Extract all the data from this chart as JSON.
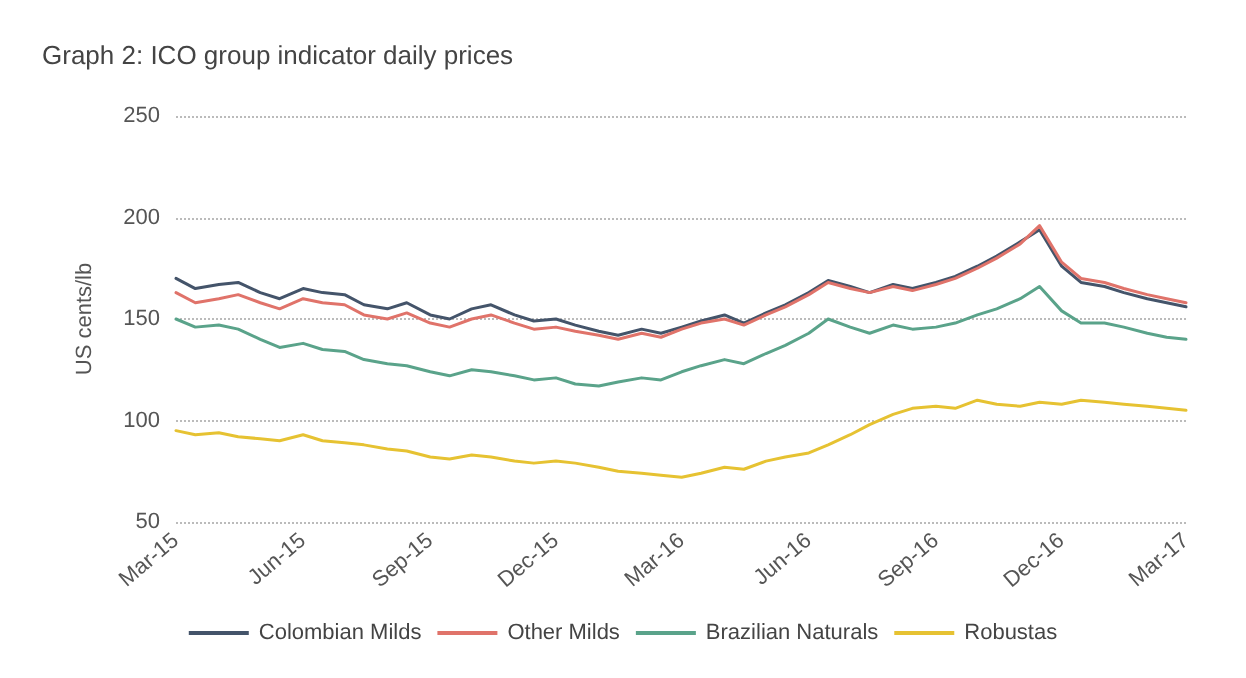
{
  "chart_data": {
    "type": "line",
    "title": "Graph 2: ICO group indicator daily prices",
    "ylabel": "US cents/lb",
    "x": [
      "2015-03-01",
      "2015-03-15",
      "2015-04-01",
      "2015-04-15",
      "2015-05-01",
      "2015-05-15",
      "2015-06-01",
      "2015-06-15",
      "2015-07-01",
      "2015-07-15",
      "2015-08-01",
      "2015-08-15",
      "2015-09-01",
      "2015-09-15",
      "2015-10-01",
      "2015-10-15",
      "2015-11-01",
      "2015-11-15",
      "2015-12-01",
      "2015-12-15",
      "2016-01-01",
      "2016-01-15",
      "2016-02-01",
      "2016-02-15",
      "2016-03-01",
      "2016-03-15",
      "2016-04-01",
      "2016-04-15",
      "2016-05-01",
      "2016-05-15",
      "2016-06-01",
      "2016-06-15",
      "2016-07-01",
      "2016-07-15",
      "2016-08-01",
      "2016-08-15",
      "2016-09-01",
      "2016-09-15",
      "2016-10-01",
      "2016-10-15",
      "2016-11-01",
      "2016-11-15",
      "2016-12-01",
      "2016-12-15",
      "2017-01-01",
      "2017-01-15",
      "2017-02-01",
      "2017-02-15",
      "2017-03-01"
    ],
    "series": [
      {
        "name": "Colombian Milds",
        "color": "#44546a",
        "values": [
          170,
          165,
          167,
          168,
          163,
          160,
          165,
          163,
          162,
          157,
          155,
          158,
          152,
          150,
          155,
          157,
          152,
          149,
          150,
          147,
          144,
          142,
          145,
          143,
          146,
          149,
          152,
          148,
          153,
          157,
          163,
          169,
          166,
          163,
          167,
          165,
          168,
          171,
          176,
          181,
          188,
          194,
          176,
          168,
          166,
          163,
          160,
          158,
          156
        ]
      },
      {
        "name": "Other Milds",
        "color": "#e0736a",
        "values": [
          163,
          158,
          160,
          162,
          158,
          155,
          160,
          158,
          157,
          152,
          150,
          153,
          148,
          146,
          150,
          152,
          148,
          145,
          146,
          144,
          142,
          140,
          143,
          141,
          145,
          148,
          150,
          147,
          152,
          156,
          162,
          168,
          165,
          163,
          166,
          164,
          167,
          170,
          175,
          180,
          187,
          196,
          178,
          170,
          168,
          165,
          162,
          160,
          158
        ]
      },
      {
        "name": "Brazilian Naturals",
        "color": "#5aa38a",
        "values": [
          150,
          146,
          147,
          145,
          140,
          136,
          138,
          135,
          134,
          130,
          128,
          127,
          124,
          122,
          125,
          124,
          122,
          120,
          121,
          118,
          117,
          119,
          121,
          120,
          124,
          127,
          130,
          128,
          133,
          137,
          143,
          150,
          146,
          143,
          147,
          145,
          146,
          148,
          152,
          155,
          160,
          166,
          154,
          148,
          148,
          146,
          143,
          141,
          140
        ]
      },
      {
        "name": "Robustas",
        "color": "#e6c232",
        "values": [
          95,
          93,
          94,
          92,
          91,
          90,
          93,
          90,
          89,
          88,
          86,
          85,
          82,
          81,
          83,
          82,
          80,
          79,
          80,
          79,
          77,
          75,
          74,
          73,
          72,
          74,
          77,
          76,
          80,
          82,
          84,
          88,
          93,
          98,
          103,
          106,
          107,
          106,
          110,
          108,
          107,
          109,
          108,
          110,
          109,
          108,
          107,
          106,
          105
        ]
      }
    ],
    "xlim": [
      "2015-03-01",
      "2017-03-01"
    ],
    "xticks": [
      {
        "value": "2015-03-01",
        "label": "Mar-15"
      },
      {
        "value": "2015-06-01",
        "label": "Jun-15"
      },
      {
        "value": "2015-09-01",
        "label": "Sep-15"
      },
      {
        "value": "2015-12-01",
        "label": "Dec-15"
      },
      {
        "value": "2016-03-01",
        "label": "Mar-16"
      },
      {
        "value": "2016-06-01",
        "label": "Jun-16"
      },
      {
        "value": "2016-09-01",
        "label": "Sep-16"
      },
      {
        "value": "2016-12-01",
        "label": "Dec-16"
      },
      {
        "value": "2017-03-01",
        "label": "Mar-17"
      }
    ],
    "ylim": [
      50,
      250
    ],
    "yticks": [
      50,
      100,
      150,
      200,
      250
    ],
    "grid": "y",
    "legend": "bottom",
    "marker": "none",
    "line_style": "solid"
  }
}
